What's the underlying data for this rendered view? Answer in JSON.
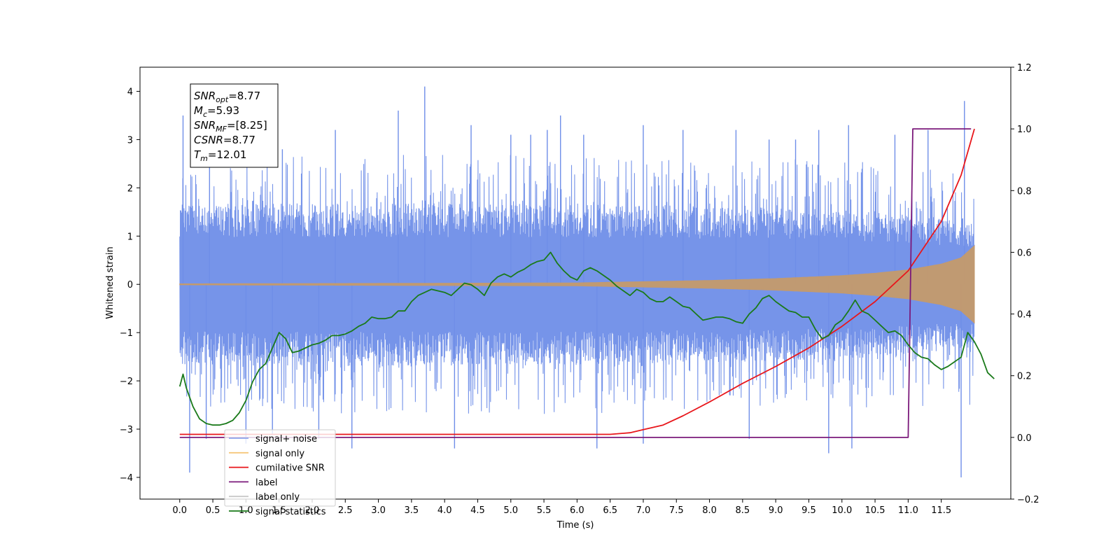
{
  "chart_data": {
    "type": "line",
    "title": "",
    "xlabel": "Time (s)",
    "ylabel": "Whitened strain",
    "xlim": [
      -0.6,
      12.55
    ],
    "ylim": [
      -4.45,
      4.5
    ],
    "y2lim": [
      -0.2,
      1.2
    ],
    "x_ticks": [
      0.0,
      0.5,
      1.0,
      1.5,
      2.0,
      2.5,
      3.0,
      3.5,
      4.0,
      4.5,
      5.0,
      5.5,
      6.0,
      6.5,
      7.0,
      7.5,
      8.0,
      8.5,
      9.0,
      9.5,
      10.0,
      10.5,
      11.0,
      11.5
    ],
    "x_tick_labels": [
      "0.0",
      "0.5",
      "1.0",
      "1.5",
      "2.0",
      "2.5",
      "3.0",
      "3.5",
      "4.0",
      "4.5",
      "5.0",
      "5.5",
      "6.0",
      "6.5",
      "7.0",
      "7.5",
      "8.0",
      "8.5",
      "9.0",
      "9.5",
      "10.0",
      "10.5",
      "11.0",
      "11.5"
    ],
    "y_ticks": [
      -4,
      -3,
      -2,
      -1,
      0,
      1,
      2,
      3,
      4
    ],
    "y_tick_labels": [
      "−4",
      "−3",
      "−2",
      "−1",
      "0",
      "1",
      "2",
      "3",
      "4"
    ],
    "y2_ticks": [
      -0.2,
      0.0,
      0.2,
      0.4,
      0.6,
      0.8,
      1.0,
      1.2
    ],
    "y2_tick_labels": [
      "−0.2",
      "0.0",
      "0.2",
      "0.4",
      "0.6",
      "0.8",
      "1.0",
      "1.2"
    ],
    "grid": false,
    "legend_position": "lower-left",
    "info_box": [
      {
        "main": "SNR",
        "sub": "opt",
        "value": "=8.77"
      },
      {
        "main": "M",
        "sub": "c",
        "value": "=5.93"
      },
      {
        "main": "SNR",
        "sub": "MF",
        "value": "=[8.25]"
      },
      {
        "main": "CSNR",
        "sub": "",
        "value": "=8.77"
      },
      {
        "main": "T",
        "sub": "m",
        "value": "=12.01"
      }
    ],
    "series": [
      {
        "name": "signal+ noise",
        "axis": "left",
        "color": "#6f8ee8",
        "kind": "noise_band",
        "x_range": [
          0.0,
          12.0
        ],
        "envelope_inner": [
          [
            0.0,
            1.4
          ],
          [
            2.0,
            1.4
          ],
          [
            6.0,
            1.4
          ],
          [
            10.0,
            1.3
          ],
          [
            12.0,
            1.1
          ]
        ],
        "envelope_outer": [
          [
            0.0,
            2.6
          ],
          [
            3.0,
            2.7
          ],
          [
            6.0,
            2.7
          ],
          [
            9.0,
            2.6
          ],
          [
            12.0,
            2.5
          ]
        ],
        "peaks": [
          [
            0.05,
            3.5
          ],
          [
            0.45,
            3.3
          ],
          [
            1.55,
            2.8
          ],
          [
            2.35,
            3.2
          ],
          [
            3.3,
            3.6
          ],
          [
            3.7,
            4.1
          ],
          [
            4.4,
            3.3
          ],
          [
            5.0,
            3.1
          ],
          [
            5.3,
            3.1
          ],
          [
            5.55,
            3.2
          ],
          [
            5.75,
            3.5
          ],
          [
            6.1,
            3.1
          ],
          [
            7.0,
            3.3
          ],
          [
            7.6,
            3.2
          ],
          [
            8.4,
            3.2
          ],
          [
            8.9,
            3.0
          ],
          [
            9.3,
            3.0
          ],
          [
            9.65,
            3.2
          ],
          [
            10.1,
            3.3
          ],
          [
            10.8,
            3.1
          ],
          [
            11.3,
            3.2
          ],
          [
            11.85,
            3.8
          ]
        ],
        "troughs": [
          [
            0.15,
            -3.9
          ],
          [
            0.4,
            -3.2
          ],
          [
            1.0,
            -3.3
          ],
          [
            1.4,
            -3.1
          ],
          [
            2.1,
            -3.2
          ],
          [
            2.6,
            -3.4
          ],
          [
            4.15,
            -3.4
          ],
          [
            6.3,
            -3.4
          ],
          [
            7.0,
            -3.3
          ],
          [
            8.6,
            -3.2
          ],
          [
            9.8,
            -3.5
          ],
          [
            10.15,
            -3.4
          ],
          [
            11.8,
            -4.0
          ]
        ]
      },
      {
        "name": "signal only",
        "axis": "left",
        "color": "#c49a6c",
        "kind": "chirp_envelope",
        "x_range": [
          0.0,
          12.0
        ],
        "amplitude": [
          [
            0.0,
            0.01
          ],
          [
            6.0,
            0.03
          ],
          [
            8.0,
            0.08
          ],
          [
            9.0,
            0.12
          ],
          [
            10.0,
            0.18
          ],
          [
            10.5,
            0.23
          ],
          [
            11.0,
            0.3
          ],
          [
            11.5,
            0.42
          ],
          [
            11.8,
            0.55
          ],
          [
            12.0,
            0.8
          ]
        ]
      },
      {
        "name": "cumilative SNR",
        "axis": "right",
        "color": "#e8161b",
        "kind": "line",
        "points": [
          [
            0.0,
            0.01
          ],
          [
            6.5,
            0.01
          ],
          [
            6.8,
            0.015
          ],
          [
            7.0,
            0.025
          ],
          [
            7.3,
            0.04
          ],
          [
            7.6,
            0.07
          ],
          [
            8.0,
            0.115
          ],
          [
            8.5,
            0.175
          ],
          [
            9.0,
            0.23
          ],
          [
            9.5,
            0.29
          ],
          [
            10.0,
            0.36
          ],
          [
            10.5,
            0.44
          ],
          [
            11.0,
            0.54
          ],
          [
            11.5,
            0.7
          ],
          [
            11.8,
            0.85
          ],
          [
            12.0,
            1.0
          ]
        ]
      },
      {
        "name": "label",
        "axis": "right",
        "color": "#7b1a7b",
        "kind": "line",
        "points": [
          [
            0.0,
            0.0
          ],
          [
            11.0,
            0.0
          ],
          [
            11.07,
            1.0
          ],
          [
            11.95,
            1.0
          ]
        ]
      },
      {
        "name": "label only",
        "axis": "right",
        "color": "#c9c9c9",
        "kind": "legend_only",
        "points": []
      },
      {
        "name": "signal statistics",
        "axis": "right",
        "color": "#1a7a1a",
        "kind": "line",
        "points": [
          [
            0.0,
            0.165
          ],
          [
            0.05,
            0.205
          ],
          [
            0.1,
            0.16
          ],
          [
            0.2,
            0.1
          ],
          [
            0.3,
            0.06
          ],
          [
            0.4,
            0.045
          ],
          [
            0.5,
            0.04
          ],
          [
            0.6,
            0.04
          ],
          [
            0.7,
            0.045
          ],
          [
            0.8,
            0.055
          ],
          [
            0.9,
            0.08
          ],
          [
            1.0,
            0.12
          ],
          [
            1.1,
            0.18
          ],
          [
            1.2,
            0.22
          ],
          [
            1.3,
            0.24
          ],
          [
            1.4,
            0.29
          ],
          [
            1.5,
            0.34
          ],
          [
            1.6,
            0.32
          ],
          [
            1.7,
            0.275
          ],
          [
            1.8,
            0.28
          ],
          [
            1.9,
            0.29
          ],
          [
            2.0,
            0.3
          ],
          [
            2.1,
            0.305
          ],
          [
            2.2,
            0.315
          ],
          [
            2.3,
            0.33
          ],
          [
            2.4,
            0.33
          ],
          [
            2.5,
            0.335
          ],
          [
            2.6,
            0.345
          ],
          [
            2.7,
            0.36
          ],
          [
            2.8,
            0.37
          ],
          [
            2.9,
            0.39
          ],
          [
            3.0,
            0.385
          ],
          [
            3.1,
            0.385
          ],
          [
            3.2,
            0.39
          ],
          [
            3.3,
            0.41
          ],
          [
            3.4,
            0.41
          ],
          [
            3.5,
            0.44
          ],
          [
            3.6,
            0.46
          ],
          [
            3.7,
            0.47
          ],
          [
            3.8,
            0.48
          ],
          [
            3.9,
            0.475
          ],
          [
            4.0,
            0.47
          ],
          [
            4.1,
            0.46
          ],
          [
            4.2,
            0.48
          ],
          [
            4.3,
            0.5
          ],
          [
            4.4,
            0.495
          ],
          [
            4.5,
            0.48
          ],
          [
            4.6,
            0.46
          ],
          [
            4.7,
            0.5
          ],
          [
            4.8,
            0.52
          ],
          [
            4.9,
            0.53
          ],
          [
            5.0,
            0.52
          ],
          [
            5.1,
            0.535
          ],
          [
            5.2,
            0.545
          ],
          [
            5.3,
            0.56
          ],
          [
            5.4,
            0.57
          ],
          [
            5.5,
            0.575
          ],
          [
            5.6,
            0.6
          ],
          [
            5.7,
            0.565
          ],
          [
            5.8,
            0.54
          ],
          [
            5.9,
            0.52
          ],
          [
            6.0,
            0.51
          ],
          [
            6.1,
            0.54
          ],
          [
            6.2,
            0.55
          ],
          [
            6.3,
            0.54
          ],
          [
            6.4,
            0.525
          ],
          [
            6.5,
            0.51
          ],
          [
            6.6,
            0.49
          ],
          [
            6.7,
            0.475
          ],
          [
            6.8,
            0.46
          ],
          [
            6.9,
            0.48
          ],
          [
            7.0,
            0.47
          ],
          [
            7.1,
            0.45
          ],
          [
            7.2,
            0.44
          ],
          [
            7.3,
            0.44
          ],
          [
            7.4,
            0.455
          ],
          [
            7.5,
            0.44
          ],
          [
            7.6,
            0.425
          ],
          [
            7.7,
            0.42
          ],
          [
            7.8,
            0.4
          ],
          [
            7.9,
            0.38
          ],
          [
            8.0,
            0.385
          ],
          [
            8.1,
            0.39
          ],
          [
            8.2,
            0.39
          ],
          [
            8.3,
            0.385
          ],
          [
            8.4,
            0.375
          ],
          [
            8.5,
            0.37
          ],
          [
            8.6,
            0.4
          ],
          [
            8.7,
            0.42
          ],
          [
            8.8,
            0.45
          ],
          [
            8.9,
            0.46
          ],
          [
            9.0,
            0.44
          ],
          [
            9.1,
            0.425
          ],
          [
            9.2,
            0.41
          ],
          [
            9.3,
            0.405
          ],
          [
            9.4,
            0.39
          ],
          [
            9.5,
            0.39
          ],
          [
            9.6,
            0.35
          ],
          [
            9.7,
            0.32
          ],
          [
            9.8,
            0.33
          ],
          [
            9.9,
            0.365
          ],
          [
            10.0,
            0.38
          ],
          [
            10.1,
            0.41
          ],
          [
            10.2,
            0.445
          ],
          [
            10.3,
            0.41
          ],
          [
            10.4,
            0.4
          ],
          [
            10.5,
            0.38
          ],
          [
            10.6,
            0.36
          ],
          [
            10.7,
            0.34
          ],
          [
            10.8,
            0.345
          ],
          [
            10.9,
            0.33
          ],
          [
            11.0,
            0.3
          ],
          [
            11.1,
            0.275
          ],
          [
            11.2,
            0.26
          ],
          [
            11.3,
            0.255
          ],
          [
            11.4,
            0.235
          ],
          [
            11.5,
            0.22
          ],
          [
            11.6,
            0.23
          ],
          [
            11.7,
            0.245
          ],
          [
            11.8,
            0.26
          ],
          [
            11.9,
            0.34
          ],
          [
            12.0,
            0.31
          ],
          [
            12.1,
            0.27
          ],
          [
            12.2,
            0.21
          ],
          [
            12.3,
            0.19
          ]
        ]
      }
    ]
  }
}
